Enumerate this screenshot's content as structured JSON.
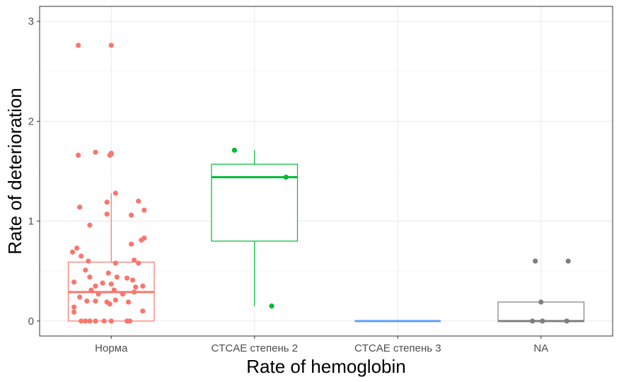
{
  "chart_data": {
    "type": "box",
    "xlabel": "Rate of hemoglobin",
    "ylabel": "Rate of deterioration",
    "categories": [
      "Норма",
      "CTCAE степень 2",
      "CTCAE степень 3",
      "NA"
    ],
    "ylim": [
      -0.15,
      3.15
    ],
    "yticks": [
      0,
      1,
      2,
      3
    ],
    "grid": true,
    "legend": "none",
    "series": [
      {
        "category": "Норма",
        "color": "#F8766D",
        "box": {
          "whisker_low": 0,
          "q1": 0,
          "median": 0.29,
          "q3": 0.59,
          "whisker_high": 1.28
        },
        "outliers": [
          {
            "x": -0.23,
            "y": 2.76
          },
          {
            "x": 0.0,
            "y": 2.76
          },
          {
            "x": -0.23,
            "y": 1.66
          },
          {
            "x": -0.11,
            "y": 1.69
          },
          {
            "x": -0.01,
            "y": 1.66
          },
          {
            "x": 0.0,
            "y": 1.67
          },
          {
            "x": 0.0,
            "y": 1.68
          }
        ],
        "points": [
          {
            "x": 0.03,
            "y": 1.28
          },
          {
            "x": 0.19,
            "y": 1.2
          },
          {
            "x": -0.03,
            "y": 1.19
          },
          {
            "x": -0.22,
            "y": 1.14
          },
          {
            "x": 0.23,
            "y": 1.11
          },
          {
            "x": -0.03,
            "y": 1.07
          },
          {
            "x": 0.14,
            "y": 1.06
          },
          {
            "x": -0.15,
            "y": 0.96
          },
          {
            "x": 0.23,
            "y": 0.83
          },
          {
            "x": 0.21,
            "y": 0.81
          },
          {
            "x": 0.14,
            "y": 0.77
          },
          {
            "x": -0.24,
            "y": 0.73
          },
          {
            "x": -0.27,
            "y": 0.69
          },
          {
            "x": -0.21,
            "y": 0.65
          },
          {
            "x": 0.16,
            "y": 0.61
          },
          {
            "x": 0.19,
            "y": 0.58
          },
          {
            "x": -0.16,
            "y": 0.6
          },
          {
            "x": 0.03,
            "y": 0.58
          },
          {
            "x": -0.18,
            "y": 0.51
          },
          {
            "x": -0.02,
            "y": 0.48
          },
          {
            "x": -0.15,
            "y": 0.44
          },
          {
            "x": 0.04,
            "y": 0.44
          },
          {
            "x": 0.11,
            "y": 0.43
          },
          {
            "x": 0.15,
            "y": 0.41
          },
          {
            "x": -0.26,
            "y": 0.39
          },
          {
            "x": -0.06,
            "y": 0.38
          },
          {
            "x": 0.0,
            "y": 0.37
          },
          {
            "x": -0.11,
            "y": 0.35
          },
          {
            "x": 0.22,
            "y": 0.35
          },
          {
            "x": 0.17,
            "y": 0.34
          },
          {
            "x": -0.14,
            "y": 0.31
          },
          {
            "x": 0.02,
            "y": 0.31
          },
          {
            "x": 0.16,
            "y": 0.29
          },
          {
            "x": -0.09,
            "y": 0.27
          },
          {
            "x": 0.08,
            "y": 0.27
          },
          {
            "x": -0.22,
            "y": 0.24
          },
          {
            "x": 0.03,
            "y": 0.21
          },
          {
            "x": -0.17,
            "y": 0.2
          },
          {
            "x": -0.11,
            "y": 0.2
          },
          {
            "x": -0.03,
            "y": 0.19
          },
          {
            "x": 0.12,
            "y": 0.19
          },
          {
            "x": -0.01,
            "y": 0.17
          },
          {
            "x": -0.26,
            "y": 0.14
          },
          {
            "x": 0.22,
            "y": 0.1
          },
          {
            "x": -0.26,
            "y": 0.09
          },
          {
            "x": -0.21,
            "y": 0.0
          },
          {
            "x": -0.18,
            "y": 0.0
          },
          {
            "x": -0.15,
            "y": 0.0
          },
          {
            "x": -0.11,
            "y": 0.0
          },
          {
            "x": -0.05,
            "y": 0.0
          },
          {
            "x": 0.0,
            "y": 0.0
          },
          {
            "x": 0.11,
            "y": 0.0
          },
          {
            "x": 0.13,
            "y": 0.0
          }
        ]
      },
      {
        "category": "CTCAE степень 2",
        "color": "#00BA38",
        "box": {
          "whisker_low": 0.15,
          "q1": 0.8,
          "median": 1.44,
          "q3": 1.57,
          "whisker_high": 1.71
        },
        "outliers": [],
        "points": [
          {
            "x": -0.14,
            "y": 1.71
          },
          {
            "x": 0.22,
            "y": 1.44
          },
          {
            "x": 0.12,
            "y": 0.15
          }
        ]
      },
      {
        "category": "CTCAE степень 3",
        "color": "#619CFF",
        "box": {
          "whisker_low": 0,
          "q1": 0,
          "median": 0,
          "q3": 0,
          "whisker_high": 0
        },
        "outliers": [],
        "points": []
      },
      {
        "category": "NA",
        "color": "#7F7F7F",
        "box": {
          "whisker_low": 0,
          "q1": 0,
          "median": 0,
          "q3": 0.19,
          "whisker_high": 0.19
        },
        "outliers": [
          {
            "x": -0.04,
            "y": 0.6
          },
          {
            "x": 0.19,
            "y": 0.6
          }
        ],
        "points": [
          {
            "x": -0.06,
            "y": 0.0
          },
          {
            "x": 0.01,
            "y": 0.0
          },
          {
            "x": 0.18,
            "y": 0.0
          },
          {
            "x": 0.0,
            "y": 0.19
          }
        ]
      }
    ]
  }
}
